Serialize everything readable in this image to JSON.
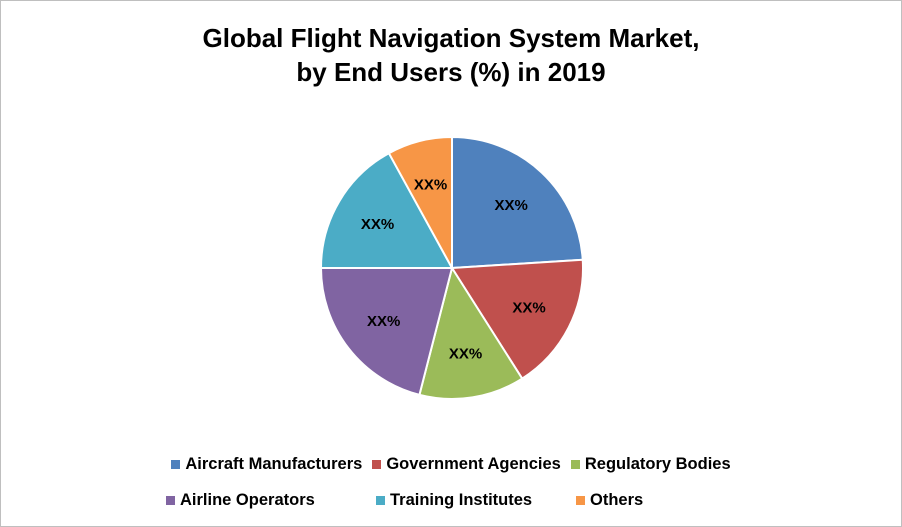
{
  "chart_data": {
    "type": "pie",
    "title": "Global Flight Navigation System Market, by End Users (%) in 2019",
    "title_lines": [
      "Global Flight Navigation System Market,",
      "by End Users (%) in 2019"
    ],
    "legend_position": "bottom",
    "slices": [
      {
        "label": "Aircraft Manufacturers",
        "value": 24,
        "data_label": "XX%",
        "color": "#4f81bd"
      },
      {
        "label": "Government Agencies",
        "value": 17,
        "data_label": "XX%",
        "color": "#c0504d"
      },
      {
        "label": "Regulatory Bodies",
        "value": 13,
        "data_label": "XX%",
        "color": "#9bbb59"
      },
      {
        "label": "Airline Operators",
        "value": 21,
        "data_label": "XX%",
        "color": "#8064a2"
      },
      {
        "label": "Training Institutes",
        "value": 17,
        "data_label": "XX%",
        "color": "#4bacc6"
      },
      {
        "label": "Others",
        "value": 8,
        "data_label": "XX%",
        "color": "#f79646"
      }
    ]
  }
}
